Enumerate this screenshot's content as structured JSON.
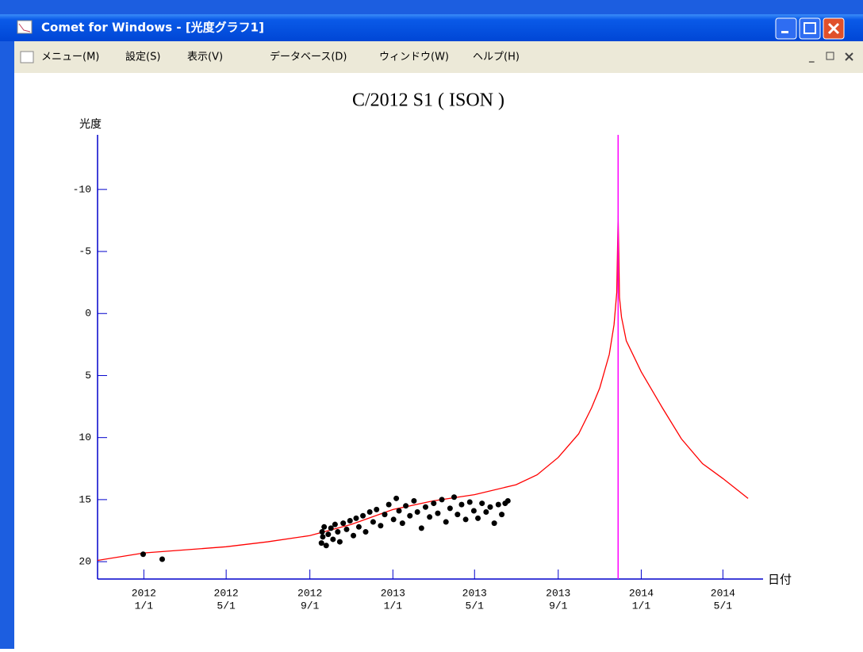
{
  "window": {
    "title": "Comet for Windows - [光度グラフ1]",
    "menu": [
      "メニュー(M)",
      "設定(S)",
      "表示(V)",
      "データベース(D)",
      "ウィンドウ(W)",
      "ヘルプ(H)"
    ]
  },
  "chart_data": {
    "type": "line",
    "title": "C/2012 S1 ( ISON )",
    "y_label": "光度",
    "x_label": "日付",
    "xlim": [
      "2011-10-25",
      "2014-06-29"
    ],
    "ylim": [
      -14.4,
      21.4
    ],
    "y_inverted": true,
    "yticks": [
      -10,
      -5,
      0,
      5,
      10,
      15,
      20
    ],
    "xticks": [
      {
        "value": "2012-01-01",
        "label": [
          "2012",
          "1/1"
        ]
      },
      {
        "value": "2012-05-01",
        "label": [
          "2012",
          "5/1"
        ]
      },
      {
        "value": "2012-09-01",
        "label": [
          "2012",
          "9/1"
        ]
      },
      {
        "value": "2013-01-01",
        "label": [
          "2013",
          "1/1"
        ]
      },
      {
        "value": "2013-05-01",
        "label": [
          "2013",
          "5/1"
        ]
      },
      {
        "value": "2013-09-01",
        "label": [
          "2013",
          "9/1"
        ]
      },
      {
        "value": "2014-01-01",
        "label": [
          "2014",
          "1/1"
        ]
      },
      {
        "value": "2014-05-01",
        "label": [
          "2014",
          "5/1"
        ]
      }
    ],
    "axis_color": "#0000cc",
    "vlines": [
      {
        "x": "2013-11-28",
        "color": "#ff00ff"
      }
    ],
    "series": [
      {
        "mark": "line",
        "color": "#ff0000",
        "x": [
          "2011-10-25",
          "2012-01-01",
          "2012-05-01",
          "2012-07-01",
          "2012-09-01",
          "2012-11-01",
          "2013-01-01",
          "2013-03-01",
          "2013-05-01",
          "2013-07-01",
          "2013-08-01",
          "2013-09-01",
          "2013-10-01",
          "2013-10-20",
          "2013-11-01",
          "2013-11-15",
          "2013-11-22",
          "2013-11-26",
          "2013-11-28",
          "2013-11-29",
          "2013-11-30",
          "2013-12-03",
          "2013-12-10",
          "2014-01-01",
          "2014-02-01",
          "2014-03-01",
          "2014-04-01",
          "2014-05-01",
          "2014-06-07"
        ],
        "values": [
          19.9,
          19.3,
          18.8,
          18.4,
          17.9,
          17.0,
          15.8,
          15.1,
          14.6,
          13.8,
          13.0,
          11.6,
          9.7,
          7.6,
          6.0,
          3.3,
          0.9,
          -1.7,
          -7.9,
          -4.9,
          -1.3,
          0.3,
          2.2,
          4.7,
          7.6,
          10.1,
          12.1,
          13.3,
          14.9
        ]
      },
      {
        "mark": "dot",
        "color": "#000000",
        "x": [
          "2011-12-31",
          "2012-01-28",
          "2012-09-18",
          "2012-09-19",
          "2012-09-20",
          "2012-09-22",
          "2012-09-25",
          "2012-09-28",
          "2012-10-02",
          "2012-10-05",
          "2012-10-08",
          "2012-10-12",
          "2012-10-15",
          "2012-10-20",
          "2012-10-25",
          "2012-10-30",
          "2012-11-04",
          "2012-11-08",
          "2012-11-12",
          "2012-11-18",
          "2012-11-22",
          "2012-11-28",
          "2012-12-03",
          "2012-12-08",
          "2012-12-14",
          "2012-12-20",
          "2012-12-26",
          "2013-01-02",
          "2013-01-06",
          "2013-01-10",
          "2013-01-15",
          "2013-01-20",
          "2013-01-26",
          "2013-02-01",
          "2013-02-06",
          "2013-02-12",
          "2013-02-18",
          "2013-02-24",
          "2013-03-02",
          "2013-03-08",
          "2013-03-14",
          "2013-03-20",
          "2013-03-26",
          "2013-04-01",
          "2013-04-06",
          "2013-04-12",
          "2013-04-18",
          "2013-04-24",
          "2013-04-30",
          "2013-05-06",
          "2013-05-12",
          "2013-05-18",
          "2013-05-24",
          "2013-05-30",
          "2013-06-05",
          "2013-06-10",
          "2013-06-15",
          "2013-06-19"
        ],
        "values": [
          19.4,
          19.8,
          18.5,
          17.6,
          18.0,
          17.2,
          18.7,
          17.8,
          17.3,
          18.2,
          17.0,
          17.6,
          18.4,
          16.9,
          17.4,
          16.7,
          17.9,
          16.5,
          17.2,
          16.3,
          17.6,
          16.0,
          16.8,
          15.8,
          17.1,
          16.2,
          15.4,
          16.6,
          14.9,
          15.9,
          16.9,
          15.5,
          16.3,
          15.1,
          16.0,
          17.3,
          15.6,
          16.4,
          15.3,
          16.1,
          15.0,
          16.8,
          15.7,
          14.8,
          16.2,
          15.4,
          16.6,
          15.2,
          15.9,
          16.5,
          15.3,
          16.0,
          15.6,
          16.9,
          15.4,
          16.2,
          15.3,
          15.1
        ]
      }
    ]
  }
}
